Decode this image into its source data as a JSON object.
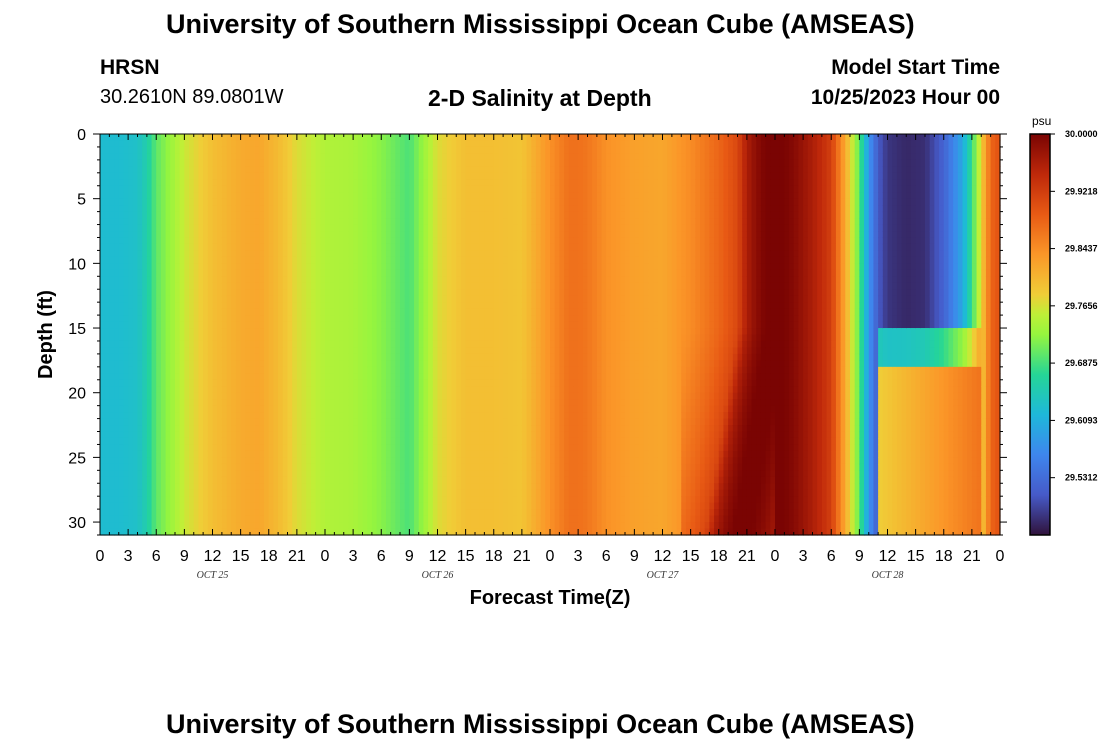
{
  "header": {
    "title": "University of Southern Mississippi Ocean Cube (AMSEAS)",
    "station": "HRSN",
    "coords": "30.2610N  89.0801W",
    "plot_title": "2-D Salinity at Depth",
    "model_start_label": "Model Start Time",
    "model_start_value": "10/25/2023 Hour 00"
  },
  "footer": {
    "title": "University of Southern Mississippi Ocean Cube (AMSEAS)"
  },
  "chart_data": {
    "type": "heatmap",
    "title": "2-D Salinity at Depth",
    "xlabel": "Forecast Time(Z)",
    "ylabel": "Depth (ft)",
    "x_hours": [
      0,
      96
    ],
    "ylim": [
      0,
      31
    ],
    "y_inverted": true,
    "x_ticks": [
      "0",
      "3",
      "6",
      "9",
      "12",
      "15",
      "18",
      "21",
      "0",
      "3",
      "6",
      "9",
      "12",
      "15",
      "18",
      "21",
      "0",
      "3",
      "6",
      "9",
      "12",
      "15",
      "18",
      "21",
      "0",
      "3",
      "6",
      "9",
      "12",
      "15",
      "18",
      "21",
      "0"
    ],
    "y_ticks": [
      0,
      5,
      10,
      15,
      20,
      25,
      30
    ],
    "day_labels": [
      "OCT 25",
      "OCT 26",
      "OCT 27",
      "OCT 28"
    ],
    "colorbar": {
      "unit": "psu",
      "min": 29.453,
      "max": 30.0,
      "tick_labels": [
        "30.0000",
        "29.9218",
        "29.8437",
        "29.7656",
        "29.6875",
        "29.6093",
        "29.5312"
      ],
      "colormap": "turbo"
    },
    "surface_salinity_profile": {
      "hour": [
        0,
        2,
        4,
        5,
        6,
        9,
        12,
        15,
        17,
        19,
        21,
        24,
        27,
        30,
        33,
        36,
        39,
        42,
        45,
        48,
        50,
        51,
        52,
        54,
        57,
        60,
        63,
        66,
        68,
        69,
        70,
        71,
        72,
        73,
        74,
        76,
        78,
        79,
        80,
        81,
        82,
        83,
        84,
        86,
        88,
        90,
        92,
        93,
        94,
        95,
        96
      ],
      "salinity": [
        29.625,
        29.625,
        29.632,
        29.655,
        29.7,
        29.76,
        29.795,
        29.815,
        29.82,
        29.8,
        29.77,
        29.745,
        29.74,
        29.72,
        29.69,
        29.77,
        29.795,
        29.795,
        29.79,
        29.84,
        29.87,
        29.87,
        29.865,
        29.84,
        29.825,
        29.82,
        29.845,
        29.88,
        29.91,
        29.96,
        29.985,
        30.0,
        30.0,
        30.0,
        29.99,
        29.96,
        29.92,
        29.85,
        29.78,
        29.7,
        29.58,
        29.51,
        29.48,
        29.47,
        29.475,
        29.52,
        29.6,
        29.68,
        29.78,
        29.88,
        29.9
      ]
    }
  }
}
